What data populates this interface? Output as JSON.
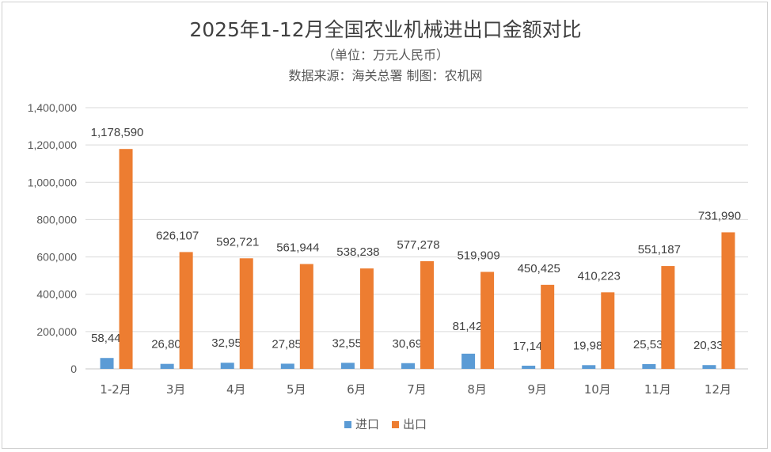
{
  "chart_data": {
    "type": "bar",
    "title": "2025年1-12月全国农业机械进出口金额对比",
    "subtitle": [
      "（单位：万元人民币）",
      "数据来源：海关总署 制图：农机网"
    ],
    "categories": [
      "1-2月",
      "3月",
      "4月",
      "5月",
      "6月",
      "7月",
      "8月",
      "9月",
      "10月",
      "11月",
      "12月"
    ],
    "series": [
      {
        "name": "进口",
        "color": "#5b9bd5",
        "values": [
          58446,
          26807,
          32959,
          27856,
          32559,
          30695,
          81429,
          17142,
          19984,
          25539,
          20332
        ]
      },
      {
        "name": "出口",
        "color": "#ed7d31",
        "values": [
          1178590,
          626107,
          592721,
          561944,
          538238,
          577278,
          519909,
          450425,
          410223,
          551187,
          731990
        ]
      }
    ],
    "ylim": [
      0,
      1400000
    ],
    "yticks": [
      "0",
      "200,000",
      "400,000",
      "600,000",
      "800,000",
      "1,000,000",
      "1,200,000",
      "1,400,000"
    ],
    "data_labels": {
      "进口": [
        "58,446",
        "26,807",
        "32,959",
        "27,856",
        "32,559",
        "30,695",
        "81,429",
        "17,142",
        "19,984",
        "25,539",
        "20,332"
      ],
      "出口": [
        "1,178,590",
        "626,107",
        "592,721",
        "561,944",
        "538,238",
        "577,278",
        "519,909",
        "450,425",
        "410,223",
        "551,187",
        "731,990"
      ]
    },
    "grid": true,
    "legend_position": "bottom"
  }
}
